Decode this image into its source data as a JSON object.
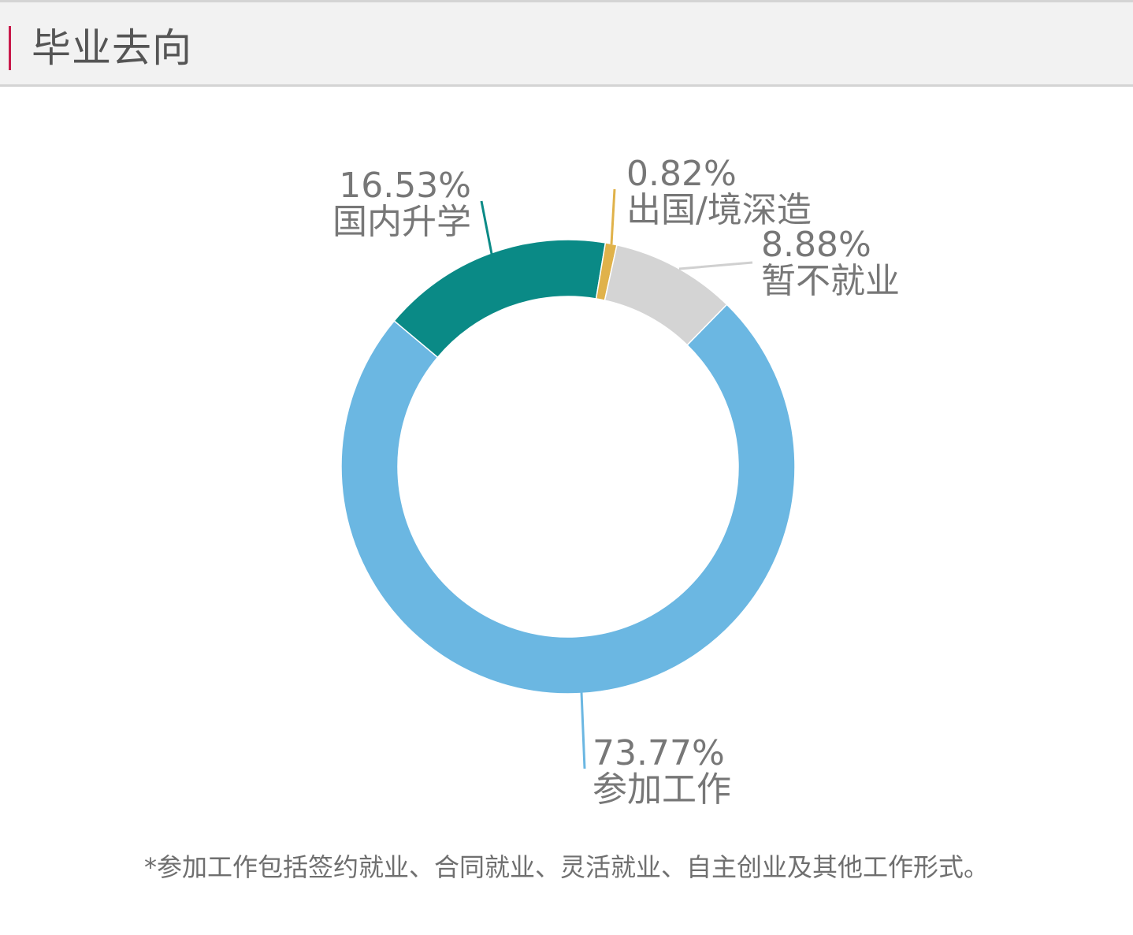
{
  "header": {
    "title": "毕业去向",
    "accent_color": "#c8194a"
  },
  "chart_data": {
    "type": "pie",
    "style": "donut",
    "title": "",
    "slices": [
      {
        "label": "参加工作",
        "value": 73.77,
        "value_label": "73.77%",
        "color": "#6bb7e2"
      },
      {
        "label": "国内升学",
        "value": 16.53,
        "value_label": "16.53%",
        "color": "#0a8a86"
      },
      {
        "label": "出国/境深造",
        "value": 0.82,
        "value_label": "0.82%",
        "color": "#e0b24a"
      },
      {
        "label": "暂不就业",
        "value": 8.88,
        "value_label": "8.88%",
        "color": "#d4d4d4"
      }
    ]
  },
  "footnote": "*参加工作包括签约就业、合同就业、灵活就业、自主创业及其他工作形式。"
}
